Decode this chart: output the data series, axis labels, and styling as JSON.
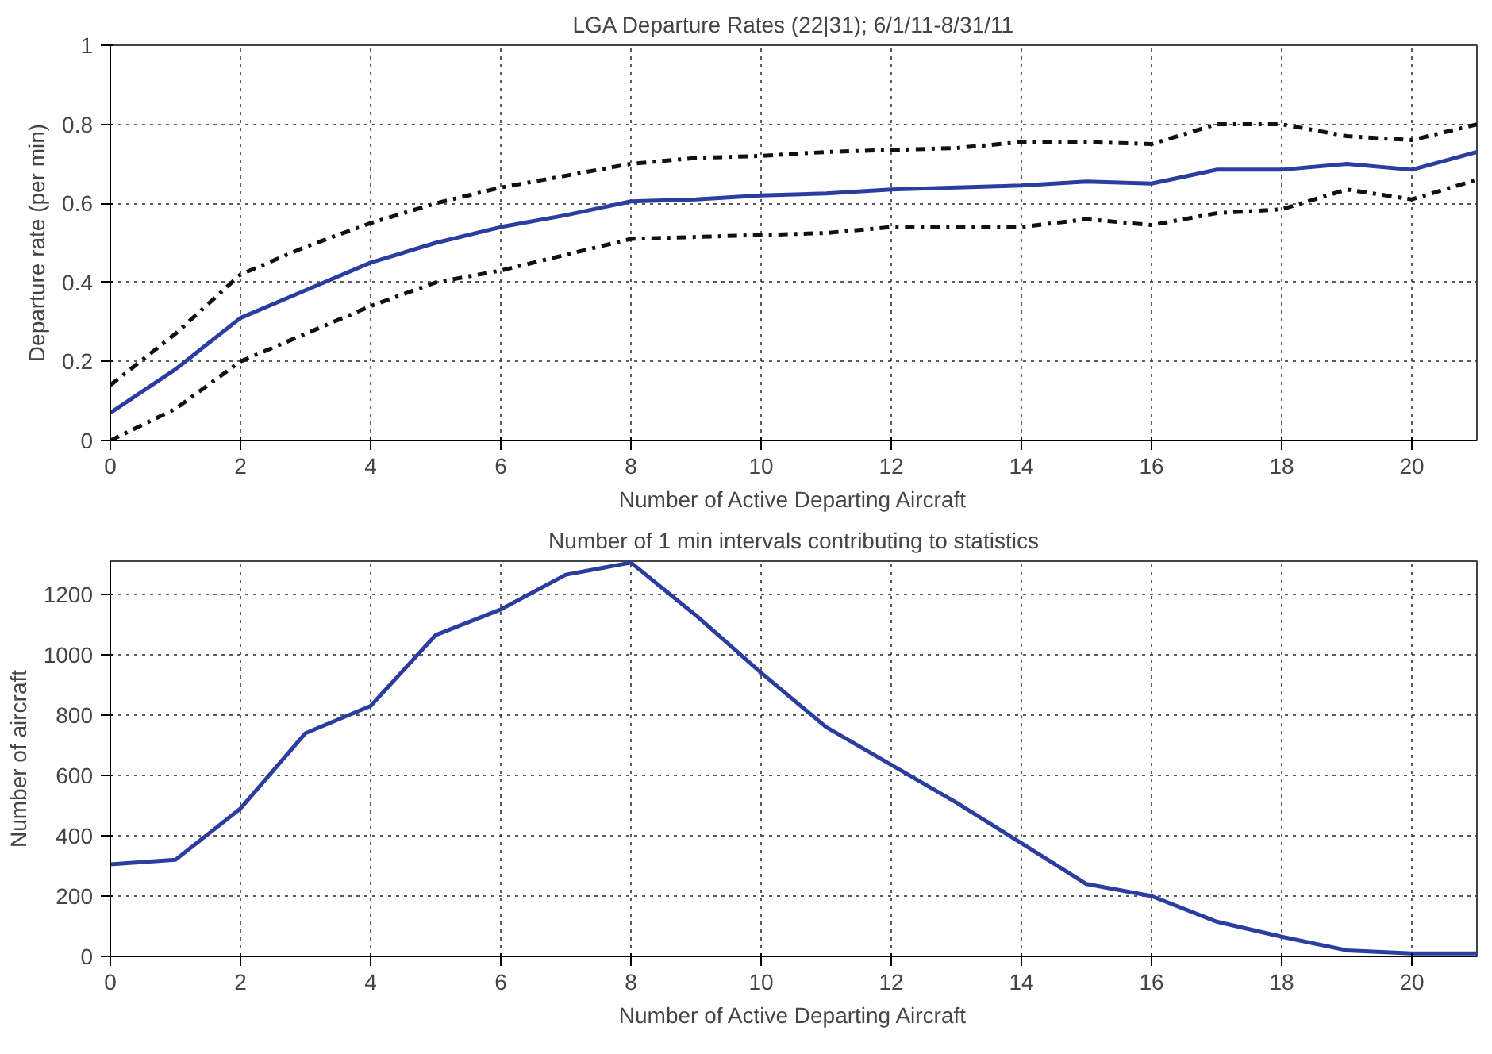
{
  "chart_data": [
    {
      "type": "line",
      "title": "LGA Departure Rates (22|31); 6/1/11-8/31/11",
      "xlabel": "Number of Active Departing Aircraft",
      "ylabel": "Departure rate (per min)",
      "x": [
        0,
        1,
        2,
        3,
        4,
        5,
        6,
        7,
        8,
        9,
        10,
        11,
        12,
        13,
        14,
        15,
        16,
        17,
        18,
        19,
        20,
        21
      ],
      "xlim": [
        0,
        21
      ],
      "xticks": [
        0,
        2,
        4,
        6,
        8,
        10,
        12,
        14,
        16,
        18,
        20
      ],
      "ylim": [
        0,
        1
      ],
      "yticks": [
        0,
        0.2,
        0.4,
        0.6,
        0.8,
        1
      ],
      "grid": true,
      "series": [
        {
          "color": "#2b3ea0",
          "line_style": "solid",
          "values": [
            0.07,
            0.18,
            0.31,
            0.38,
            0.45,
            0.5,
            0.54,
            0.57,
            0.605,
            0.61,
            0.62,
            0.625,
            0.635,
            0.64,
            0.645,
            0.655,
            0.65,
            0.685,
            0.685,
            0.7,
            0.685,
            0.73
          ]
        },
        {
          "color": "#111111",
          "line_style": "dashdot",
          "values": [
            0.14,
            0.27,
            0.42,
            0.49,
            0.55,
            0.6,
            0.64,
            0.67,
            0.7,
            0.715,
            0.72,
            0.73,
            0.735,
            0.74,
            0.755,
            0.755,
            0.75,
            0.8,
            0.8,
            0.77,
            0.76,
            0.8
          ]
        },
        {
          "color": "#111111",
          "line_style": "dashdot",
          "values": [
            0.0,
            0.08,
            0.2,
            0.27,
            0.34,
            0.4,
            0.43,
            0.47,
            0.51,
            0.515,
            0.52,
            0.525,
            0.54,
            0.54,
            0.54,
            0.56,
            0.545,
            0.575,
            0.585,
            0.635,
            0.61,
            0.66
          ]
        }
      ]
    },
    {
      "type": "line",
      "title": "Number of 1 min intervals contributing to statistics",
      "xlabel": "Number of Active Departing Aircraft",
      "ylabel": "Number of aircraft",
      "x": [
        0,
        1,
        2,
        3,
        4,
        5,
        6,
        7,
        8,
        9,
        10,
        11,
        12,
        13,
        14,
        15,
        16,
        17,
        18,
        19,
        20,
        21
      ],
      "xlim": [
        0,
        21
      ],
      "xticks": [
        0,
        2,
        4,
        6,
        8,
        10,
        12,
        14,
        16,
        18,
        20
      ],
      "ylim": [
        0,
        1310
      ],
      "yticks": [
        0,
        200,
        400,
        600,
        800,
        1000,
        1200
      ],
      "grid": true,
      "series": [
        {
          "color": "#2b3ea0",
          "line_style": "solid",
          "values": [
            305,
            320,
            490,
            740,
            830,
            1065,
            1150,
            1265,
            1305,
            1130,
            940,
            760,
            635,
            510,
            375,
            240,
            200,
            115,
            65,
            20,
            10,
            10
          ]
        }
      ]
    }
  ]
}
